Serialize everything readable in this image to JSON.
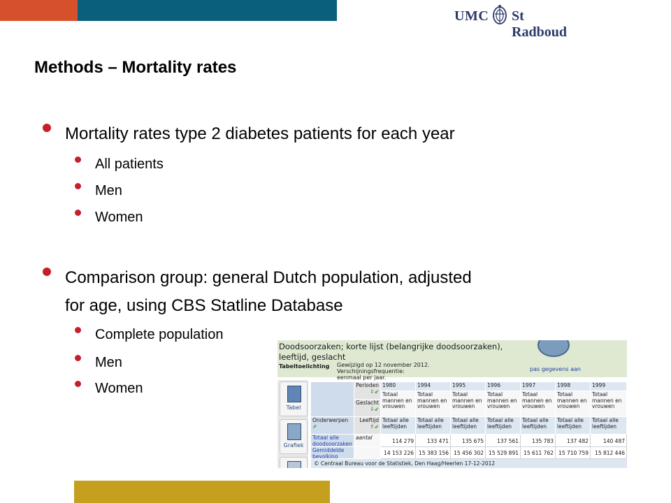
{
  "header": {
    "logo_left": "UMC",
    "logo_right": "St Radboud",
    "accent_red": "#d6502c",
    "accent_teal": "#0a5f7c",
    "accent_gold": "#c4a01e",
    "bullet_color": "#c61f2a"
  },
  "slide": {
    "title": "Methods – Mortality rates",
    "bullets": [
      {
        "text": "Mortality rates type 2 diabetes patients for each year",
        "sub": [
          "All patients",
          "Men",
          "Women"
        ]
      },
      {
        "text_line1": "Comparison group: general Dutch population, adjusted",
        "text_line2": "for age, using CBS Statline Database",
        "sub": [
          "Complete population",
          "Men",
          "Women"
        ]
      }
    ]
  },
  "statline": {
    "title_line1": "Doodsoorzaken; korte lijst (belangrijke doodsoorzaken),",
    "title_line2": "leeftijd, geslacht",
    "tabeltoelichting": "Tabeltoelichting",
    "gewijzigd_line1": "Gewijzigd op 12 november 2012. Verschijningsfrequentie:",
    "gewijzigd_line2": "eenmaal per jaar.",
    "pas_link": "pas gegevens aan",
    "side_tabs": [
      "Tabel",
      "Grafiek"
    ],
    "perioden": "Perioden",
    "geslacht": "Geslacht",
    "leeftijd": "Leeftijd",
    "onderwerpen": "Onderwerpen",
    "years": [
      "1980",
      "1994",
      "1995",
      "1996",
      "1997",
      "1998",
      "1999"
    ],
    "geslacht_value": "Totaal mannen en vrouwen",
    "leeftijd_value": "Totaal alle leeftijden",
    "row1_label": "Totaal alle doodsoorzaken",
    "row1_unit": "aantal",
    "row1_values": [
      "114 279",
      "133 471",
      "135 675",
      "137 561",
      "135 783",
      "137 482",
      "140 487"
    ],
    "row2_label": "Gemiddelde bevolking",
    "row2_values": [
      "14 153 226",
      "15 383 156",
      "15 456 302",
      "15 529 891",
      "15 611 762",
      "15 710 759",
      "15 812 446"
    ],
    "footer": "© Centraal Bureau voor de Statistiek, Den Haag/Heerlen 17-12-2012"
  }
}
